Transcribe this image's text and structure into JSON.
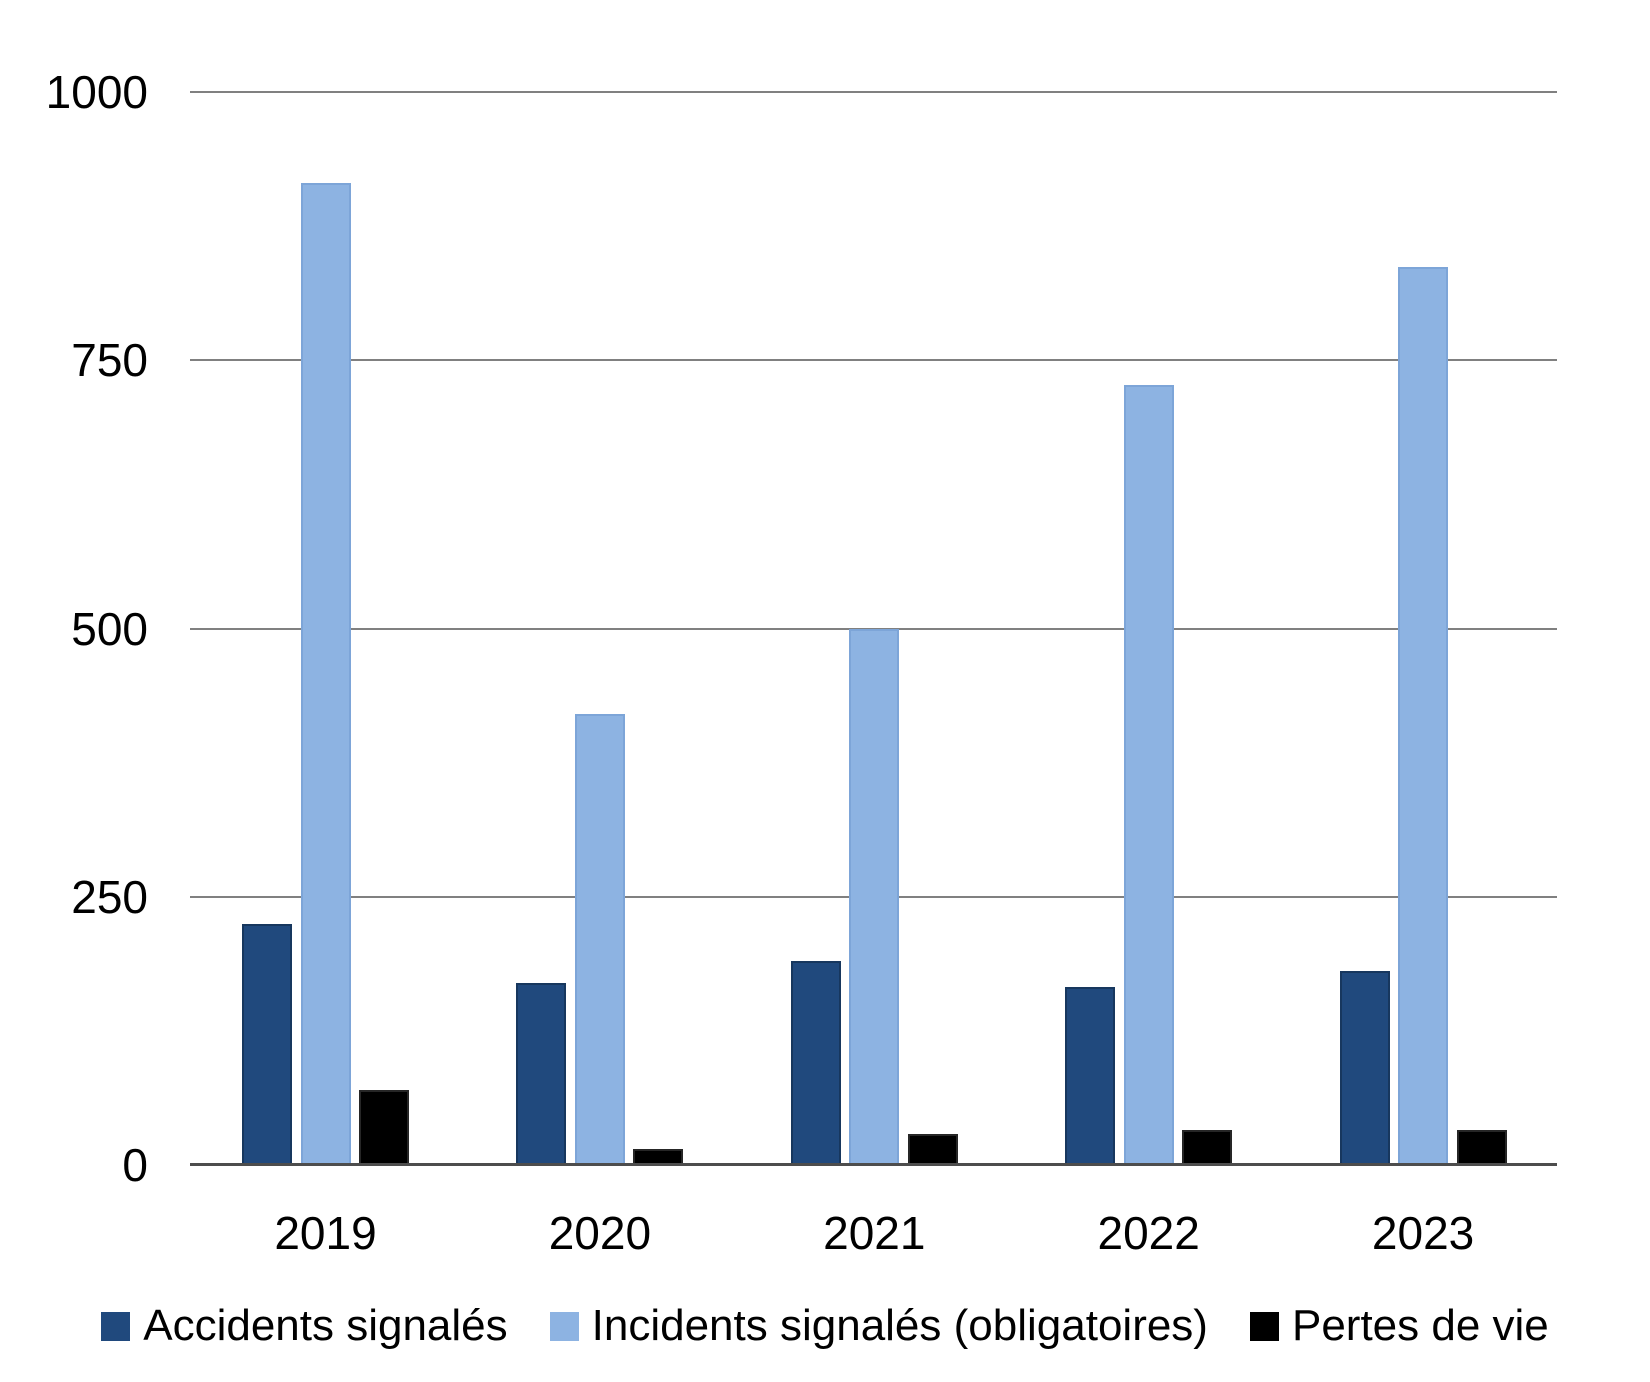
{
  "chart_data": {
    "type": "bar",
    "title": "",
    "categories": [
      "2019",
      "2020",
      "2021",
      "2022",
      "2023"
    ],
    "series": [
      {
        "name": "Accidents signalés",
        "color": "#20497D",
        "border_color": "#17375E",
        "values": [
          225,
          170,
          190,
          166,
          181
        ]
      },
      {
        "name": "Incidents signalés (obligatoires)",
        "color": "#8DB3E2",
        "border_color": "#7DA5D8",
        "values": [
          915,
          420,
          500,
          727,
          837
        ]
      },
      {
        "name": "Pertes de vie",
        "color": "#000000",
        "border_color": "#262626",
        "values": [
          70,
          15,
          29,
          33,
          33
        ]
      }
    ],
    "xlabel": "",
    "ylabel": "",
    "ylim": [
      0,
      1000
    ],
    "yticks": [
      0,
      250,
      500,
      750,
      1000
    ],
    "grid": true,
    "legend_position": "bottom",
    "gridline_color": "#808080",
    "axis_line_color": "#4D4D4D",
    "text_color": "#000000",
    "background_color": "#FFFFFF"
  }
}
